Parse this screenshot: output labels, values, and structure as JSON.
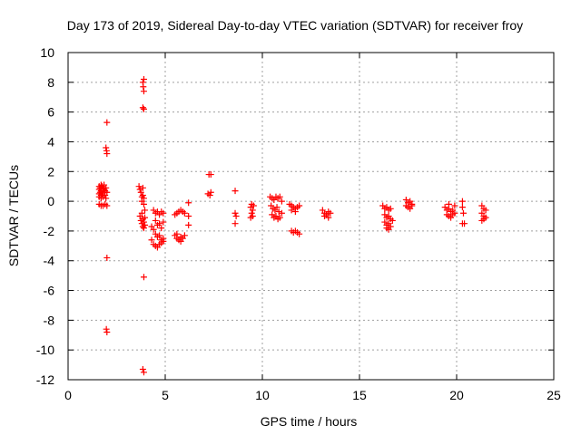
{
  "chart_data": {
    "type": "scatter",
    "title": "Day 173 of 2019, Sidereal Day-to-day VTEC variation (SDTVAR) for receiver froy",
    "xlabel": "GPS time / hours",
    "ylabel": "SDTVAR / TECUs",
    "xlim": [
      0,
      25
    ],
    "ylim": [
      -12,
      10
    ],
    "xticks": [
      0,
      5,
      10,
      15,
      20,
      25
    ],
    "xtick_labels": [
      "0",
      "5",
      "10",
      "15",
      "20",
      "25"
    ],
    "yticks": [
      -12,
      -10,
      -8,
      -6,
      -4,
      -2,
      0,
      2,
      4,
      6,
      8,
      10
    ],
    "ytick_labels": [
      "-12",
      "-10",
      "-8",
      "-6",
      "-4",
      "-2",
      "0",
      "2",
      "4",
      "6",
      "8",
      "10"
    ],
    "grid": true,
    "marker": "+",
    "color": "#ff0000",
    "series": [
      {
        "name": "SDTVAR",
        "points": [
          [
            1.6,
            1.0
          ],
          [
            1.6,
            0.8
          ],
          [
            1.6,
            0.5
          ],
          [
            1.6,
            0.3
          ],
          [
            1.6,
            -0.2
          ],
          [
            1.65,
            0.9
          ],
          [
            1.65,
            0.6
          ],
          [
            1.7,
            1.1
          ],
          [
            1.7,
            0.7
          ],
          [
            1.7,
            0.4
          ],
          [
            1.7,
            0.2
          ],
          [
            1.7,
            -0.3
          ],
          [
            1.75,
            1.0
          ],
          [
            1.75,
            0.5
          ],
          [
            1.8,
            0.9
          ],
          [
            1.8,
            0.6
          ],
          [
            1.8,
            0.3
          ],
          [
            1.8,
            -0.3
          ],
          [
            1.85,
            0.8
          ],
          [
            1.85,
            1.1
          ],
          [
            1.9,
            0.7
          ],
          [
            1.9,
            0.4
          ],
          [
            1.9,
            -0.2
          ],
          [
            1.95,
            0.9
          ],
          [
            1.95,
            0.2
          ],
          [
            2.0,
            0.6
          ],
          [
            2.0,
            -0.3
          ],
          [
            2.0,
            5.3
          ],
          [
            1.95,
            3.6
          ],
          [
            1.98,
            3.4
          ],
          [
            2.0,
            3.2
          ],
          [
            2.0,
            -3.8
          ],
          [
            1.97,
            -8.6
          ],
          [
            2.0,
            -8.8
          ],
          [
            3.65,
            1.0
          ],
          [
            3.7,
            0.8
          ],
          [
            3.75,
            0.6
          ],
          [
            3.8,
            0.3
          ],
          [
            3.8,
            0.0
          ],
          [
            3.85,
            0.9
          ],
          [
            3.85,
            0.4
          ],
          [
            3.9,
            0.2
          ],
          [
            3.9,
            -0.2
          ],
          [
            3.7,
            -1.0
          ],
          [
            3.75,
            -1.3
          ],
          [
            3.8,
            -1.5
          ],
          [
            3.85,
            -1.2
          ],
          [
            3.85,
            -1.7
          ],
          [
            3.9,
            -1.4
          ],
          [
            3.9,
            -1.8
          ],
          [
            3.95,
            -1.6
          ],
          [
            3.95,
            -1.1
          ],
          [
            3.8,
            -0.8
          ],
          [
            3.95,
            -0.6
          ],
          [
            3.85,
            8.0
          ],
          [
            3.9,
            8.2
          ],
          [
            3.87,
            7.7
          ],
          [
            3.9,
            7.4
          ],
          [
            3.85,
            6.3
          ],
          [
            3.9,
            6.2
          ],
          [
            3.9,
            -5.1
          ],
          [
            3.85,
            -11.3
          ],
          [
            3.9,
            -11.5
          ],
          [
            4.4,
            -0.6
          ],
          [
            4.5,
            -0.8
          ],
          [
            4.6,
            -0.7
          ],
          [
            4.7,
            -0.9
          ],
          [
            4.8,
            -0.7
          ],
          [
            4.9,
            -0.8
          ],
          [
            4.5,
            -1.3
          ],
          [
            4.6,
            -1.6
          ],
          [
            4.7,
            -1.5
          ],
          [
            4.8,
            -1.8
          ],
          [
            4.9,
            -1.4
          ],
          [
            4.4,
            -1.9
          ],
          [
            4.5,
            -2.2
          ],
          [
            4.6,
            -2.4
          ],
          [
            4.7,
            -2.3
          ],
          [
            4.8,
            -2.6
          ],
          [
            4.9,
            -2.5
          ],
          [
            4.4,
            -2.9
          ],
          [
            4.5,
            -3.0
          ],
          [
            4.6,
            -3.1
          ],
          [
            4.7,
            -2.9
          ],
          [
            4.8,
            -2.8
          ],
          [
            4.9,
            -2.7
          ],
          [
            4.3,
            -1.7
          ],
          [
            4.3,
            -2.6
          ],
          [
            5.5,
            -2.3
          ],
          [
            5.6,
            -2.5
          ],
          [
            5.7,
            -2.6
          ],
          [
            5.8,
            -2.4
          ],
          [
            5.9,
            -2.5
          ],
          [
            6.0,
            -2.3
          ],
          [
            5.6,
            -2.2
          ],
          [
            5.8,
            -2.7
          ],
          [
            5.5,
            -0.9
          ],
          [
            5.6,
            -0.8
          ],
          [
            5.7,
            -0.7
          ],
          [
            5.8,
            -0.6
          ],
          [
            5.9,
            -0.7
          ],
          [
            6.0,
            -0.8
          ],
          [
            6.2,
            -0.1
          ],
          [
            6.2,
            -1.0
          ],
          [
            6.2,
            -1.6
          ],
          [
            7.25,
            1.8
          ],
          [
            7.35,
            1.8
          ],
          [
            7.2,
            0.5
          ],
          [
            7.3,
            0.4
          ],
          [
            7.35,
            0.6
          ],
          [
            8.6,
            0.7
          ],
          [
            8.6,
            -0.8
          ],
          [
            8.65,
            -1.0
          ],
          [
            8.6,
            -1.5
          ],
          [
            9.4,
            -0.4
          ],
          [
            9.5,
            -0.6
          ],
          [
            9.45,
            -0.8
          ],
          [
            9.5,
            -1.0
          ],
          [
            9.4,
            -1.1
          ],
          [
            9.55,
            -0.3
          ],
          [
            9.45,
            -0.2
          ],
          [
            10.4,
            0.3
          ],
          [
            10.5,
            0.2
          ],
          [
            10.6,
            0.1
          ],
          [
            10.7,
            0.3
          ],
          [
            10.8,
            0.2
          ],
          [
            10.9,
            0.3
          ],
          [
            10.45,
            -0.3
          ],
          [
            10.55,
            -0.5
          ],
          [
            10.65,
            -0.6
          ],
          [
            10.75,
            -0.4
          ],
          [
            10.85,
            -0.7
          ],
          [
            10.5,
            -0.9
          ],
          [
            10.6,
            -1.1
          ],
          [
            10.7,
            -1.0
          ],
          [
            10.8,
            -1.2
          ],
          [
            10.9,
            -1.1
          ],
          [
            11.0,
            -0.8
          ],
          [
            11.0,
            0.0
          ],
          [
            11.4,
            -0.2
          ],
          [
            11.5,
            -0.3
          ],
          [
            11.6,
            -0.4
          ],
          [
            11.7,
            -0.5
          ],
          [
            11.8,
            -0.4
          ],
          [
            11.9,
            -0.3
          ],
          [
            11.5,
            -0.6
          ],
          [
            11.7,
            -0.7
          ],
          [
            11.5,
            -2.0
          ],
          [
            11.6,
            -2.1
          ],
          [
            11.7,
            -2.0
          ],
          [
            11.8,
            -2.1
          ],
          [
            11.9,
            -2.2
          ],
          [
            13.1,
            -0.6
          ],
          [
            13.2,
            -0.8
          ],
          [
            13.3,
            -0.9
          ],
          [
            13.4,
            -0.7
          ],
          [
            13.5,
            -0.8
          ],
          [
            13.2,
            -1.0
          ],
          [
            13.4,
            -1.1
          ],
          [
            16.2,
            -0.3
          ],
          [
            16.3,
            -0.5
          ],
          [
            16.4,
            -0.4
          ],
          [
            16.5,
            -0.6
          ],
          [
            16.6,
            -0.5
          ],
          [
            16.3,
            -0.9
          ],
          [
            16.4,
            -1.1
          ],
          [
            16.5,
            -1.0
          ],
          [
            16.6,
            -1.2
          ],
          [
            16.3,
            -1.4
          ],
          [
            16.4,
            -1.6
          ],
          [
            16.5,
            -1.5
          ],
          [
            16.6,
            -1.7
          ],
          [
            16.4,
            -1.8
          ],
          [
            16.5,
            -1.9
          ],
          [
            16.7,
            -1.3
          ],
          [
            17.4,
            0.1
          ],
          [
            17.5,
            -0.1
          ],
          [
            17.6,
            0.0
          ],
          [
            17.7,
            -0.2
          ],
          [
            17.5,
            -0.4
          ],
          [
            17.6,
            -0.5
          ],
          [
            17.7,
            -0.3
          ],
          [
            17.4,
            -0.3
          ],
          [
            19.4,
            -0.4
          ],
          [
            19.5,
            -0.6
          ],
          [
            19.6,
            -0.5
          ],
          [
            19.7,
            -0.7
          ],
          [
            19.8,
            -0.6
          ],
          [
            19.9,
            -0.8
          ],
          [
            19.5,
            -0.9
          ],
          [
            19.6,
            -1.0
          ],
          [
            19.7,
            -1.1
          ],
          [
            19.8,
            -0.9
          ],
          [
            19.9,
            -0.3
          ],
          [
            19.6,
            -0.2
          ],
          [
            20.3,
            0.0
          ],
          [
            20.3,
            -0.4
          ],
          [
            20.35,
            -0.8
          ],
          [
            20.3,
            -1.5
          ],
          [
            20.4,
            -1.5
          ],
          [
            21.3,
            -0.3
          ],
          [
            21.4,
            -0.5
          ],
          [
            21.5,
            -0.6
          ],
          [
            21.3,
            -0.8
          ],
          [
            21.4,
            -1.0
          ],
          [
            21.5,
            -1.1
          ],
          [
            21.3,
            -1.3
          ],
          [
            21.4,
            -1.2
          ]
        ]
      }
    ]
  }
}
